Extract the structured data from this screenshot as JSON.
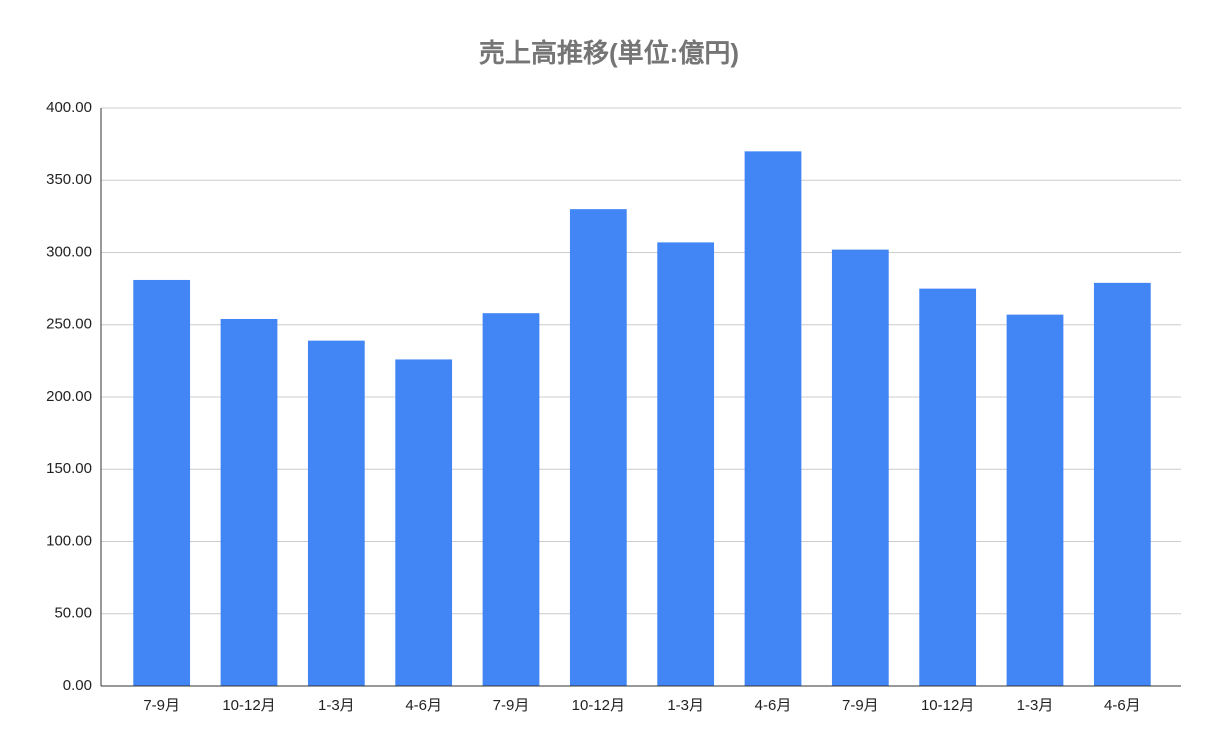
{
  "chart_data": {
    "type": "bar",
    "title": "売上高推移(単位:億円)",
    "categories": [
      "7-9月",
      "10-12月",
      "1-3月",
      "4-6月",
      "7-9月",
      "10-12月",
      "1-3月",
      "4-6月",
      "7-9月",
      "10-12月",
      "1-3月",
      "4-6月"
    ],
    "values": [
      281,
      254,
      239,
      226,
      258,
      330,
      307,
      370,
      302,
      275,
      257,
      279
    ],
    "color": "#4285f4",
    "ylim": [
      0,
      400
    ],
    "yticks": [
      {
        "value": 0,
        "label": "0.00"
      },
      {
        "value": 50,
        "label": "50.00"
      },
      {
        "value": 100,
        "label": "100.00"
      },
      {
        "value": 150,
        "label": "150.00"
      },
      {
        "value": 200,
        "label": "200.00"
      },
      {
        "value": 250,
        "label": "250.00"
      },
      {
        "value": 300,
        "label": "300.00"
      },
      {
        "value": 350,
        "label": "350.00"
      },
      {
        "value": 400,
        "label": "400.00"
      }
    ],
    "grid": true
  }
}
